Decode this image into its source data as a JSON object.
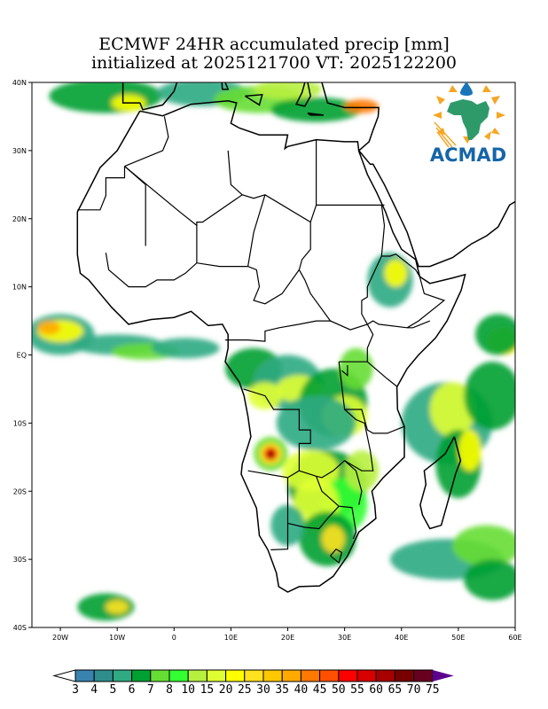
{
  "title": {
    "line1": "ECMWF 24HR accumulated precip [mm]",
    "line2": "initialized at 2025121700 VT: 2025122200"
  },
  "logo": {
    "text": "ACMAD"
  },
  "axes": {
    "lat_labels": [
      "40N",
      "30N",
      "20N",
      "10N",
      "EQ",
      "10S",
      "20S",
      "30S",
      "40S"
    ],
    "lat_values": [
      40,
      30,
      20,
      10,
      0,
      -10,
      -20,
      -30,
      -40
    ],
    "lon_labels": [
      "20W",
      "10W",
      "0",
      "10E",
      "20E",
      "30E",
      "40E",
      "50E",
      "60E"
    ],
    "lon_values": [
      -20,
      -10,
      0,
      10,
      20,
      30,
      40,
      50,
      60
    ],
    "lon_range": [
      -25,
      60
    ],
    "lat_range": [
      -40,
      40
    ]
  },
  "colorbar": {
    "labels": [
      "3",
      "4",
      "5",
      "6",
      "7",
      "8",
      "10",
      "15",
      "20",
      "25",
      "30",
      "35",
      "40",
      "45",
      "50",
      "55",
      "60",
      "65",
      "70",
      "75"
    ],
    "colors": [
      "#3a82b0",
      "#2f8e8c",
      "#2faa82",
      "#00a032",
      "#66dd33",
      "#33ff33",
      "#b8f040",
      "#e0ff33",
      "#ffff00",
      "#ffe11e",
      "#ffc800",
      "#ffaa00",
      "#ff7800",
      "#ff5000",
      "#ff0000",
      "#d80000",
      "#a80000",
      "#780000",
      "#680020"
    ],
    "over_color": "#5c0090",
    "under_color": "#ffffff"
  }
}
